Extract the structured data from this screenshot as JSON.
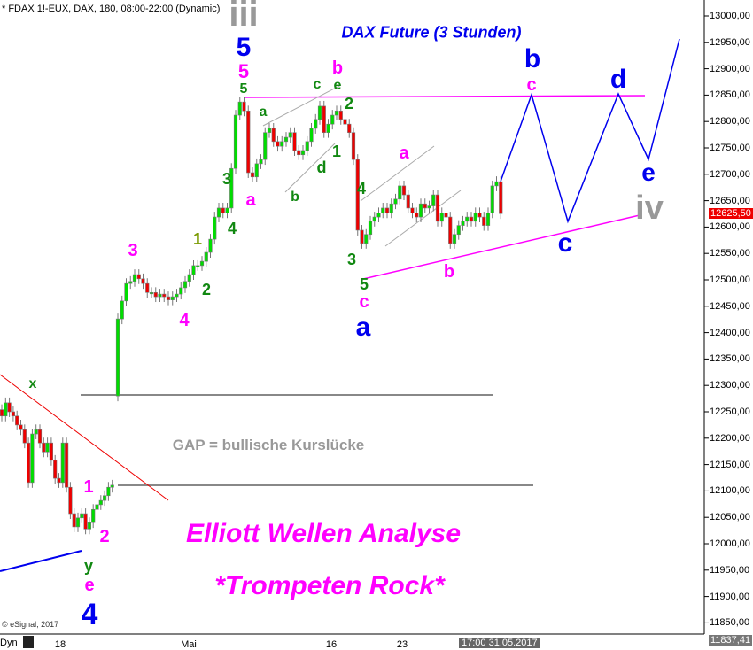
{
  "header": {
    "instrument": "* FDAX 1!-EUX, DAX, 180, 08:00-22:00 (Dynamic)"
  },
  "titles": {
    "main": "DAX Future (3 Stunden)",
    "gap": "GAP = bullische Kurslücke",
    "analysis": "Elliott Wellen Analyse",
    "subtitle": "*Trompeten Rock*"
  },
  "copyright": "© eSignal, 2017",
  "footer": {
    "dyn": "Dyn",
    "lock_icon": "lock-icon",
    "cursor_date": "17:00 31.05.2017"
  },
  "colors": {
    "up": "#00dd00",
    "down": "#ee0000",
    "magenta": "#ff00ff",
    "blue": "#0000ee",
    "green": "#118811",
    "gray": "#999999"
  },
  "annotations": [
    {
      "text": "iii",
      "color": "#999999"
    },
    {
      "text": "5",
      "color": "#0000ee"
    },
    {
      "text": "5",
      "color": "#ff00ff"
    },
    {
      "text": "5",
      "color": "#118811"
    },
    {
      "text": "a",
      "color": "#118811"
    },
    {
      "text": "a",
      "color": "#ff00ff"
    },
    {
      "text": "3",
      "color": "#118811"
    },
    {
      "text": "4",
      "color": "#118811"
    },
    {
      "text": "1",
      "color": "#7a9a00"
    },
    {
      "text": "2",
      "color": "#118811"
    },
    {
      "text": "3",
      "color": "#ff00ff"
    },
    {
      "text": "4",
      "color": "#ff00ff"
    },
    {
      "text": "c",
      "color": "#118811"
    },
    {
      "text": "e",
      "color": "#118811"
    },
    {
      "text": "b",
      "color": "#ff00ff"
    },
    {
      "text": "2",
      "color": "#118811"
    },
    {
      "text": "d",
      "color": "#118811"
    },
    {
      "text": "1",
      "color": "#118811"
    },
    {
      "text": "b",
      "color": "#118811"
    },
    {
      "text": "4",
      "color": "#118811"
    },
    {
      "text": "3",
      "color": "#118811"
    },
    {
      "text": "5",
      "color": "#118811"
    },
    {
      "text": "c",
      "color": "#ff00ff"
    },
    {
      "text": "a",
      "color": "#0000ee"
    },
    {
      "text": "a",
      "color": "#ff00ff"
    },
    {
      "text": "b",
      "color": "#ff00ff"
    },
    {
      "text": "b",
      "color": "#0000ee"
    },
    {
      "text": "c",
      "color": "#ff00ff"
    },
    {
      "text": "d",
      "color": "#0000ee"
    },
    {
      "text": "e",
      "color": "#0000ee"
    },
    {
      "text": "iv",
      "color": "#999999"
    },
    {
      "text": "c",
      "color": "#0000ee"
    },
    {
      "text": "x",
      "color": "#118811"
    },
    {
      "text": "1",
      "color": "#ff00ff"
    },
    {
      "text": "2",
      "color": "#ff00ff"
    },
    {
      "text": "y",
      "color": "#118811"
    },
    {
      "text": "e",
      "color": "#ff00ff"
    },
    {
      "text": "4",
      "color": "#0000ee"
    }
  ],
  "chart_data": {
    "type": "candlestick",
    "title": "DAX Future (3 Stunden)",
    "ylim": [
      11850,
      13000
    ],
    "ytick_step": 50,
    "yticks": [
      "13000,00",
      "12950,00",
      "12900,00",
      "12850,00",
      "12800,00",
      "12750,00",
      "12700,00",
      "12650,00",
      "12600,00",
      "12550,00",
      "12500,00",
      "12450,00",
      "12400,00",
      "12350,00",
      "12300,00",
      "12250,00",
      "12200,00",
      "12150,00",
      "12100,00",
      "12050,00",
      "12000,00",
      "11950,00",
      "11900,00",
      "11850,00"
    ],
    "xticks": [
      "18",
      "Mai",
      "16",
      "23"
    ],
    "last_price": "12625,50",
    "low_marker": "11837,41",
    "gap_level": 12275,
    "closes": [
      12242,
      12267,
      12250,
      12242,
      12225,
      12216,
      12191,
      12116,
      12208,
      12216,
      12191,
      12174,
      12191,
      12158,
      12124,
      12116,
      12191,
      12107,
      12057,
      12032,
      12049,
      12057,
      12028,
      12040,
      12065,
      12074,
      12082,
      12091,
      12107,
      12111,
      12426,
      12460,
      12493,
      12497,
      12510,
      12502,
      12493,
      12476,
      12476,
      12468,
      12473,
      12468,
      12462,
      12468,
      12473,
      12485,
      12497,
      12510,
      12527,
      12527,
      12535,
      12552,
      12577,
      12619,
      12636,
      12627,
      12636,
      12711,
      12812,
      12837,
      12820,
      12703,
      12695,
      12720,
      12728,
      12779,
      12787,
      12762,
      12753,
      12762,
      12770,
      12779,
      12745,
      12737,
      12745,
      12762,
      12787,
      12804,
      12829,
      12779,
      12795,
      12812,
      12820,
      12804,
      12795,
      12779,
      12728,
      12594,
      12569,
      12586,
      12611,
      12619,
      12627,
      12636,
      12627,
      12644,
      12653,
      12678,
      12661,
      12636,
      12627,
      12619,
      12644,
      12636,
      12640,
      12661,
      12611,
      12627,
      12619,
      12569,
      12586,
      12603,
      12611,
      12619,
      12611,
      12627,
      12619,
      12603,
      12627,
      12678,
      12686,
      12625.5
    ],
    "gap_open": 12280
  }
}
